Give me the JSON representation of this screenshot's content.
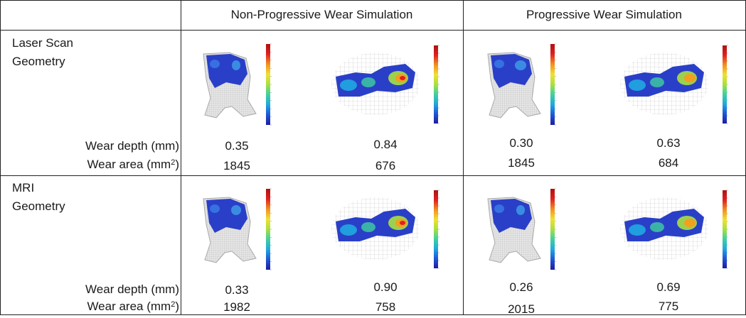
{
  "columns": {
    "non_progressive": "Non-Progressive Wear Simulation",
    "progressive": "Progressive Wear Simulation"
  },
  "labels": {
    "wear_depth": "Wear depth (mm)",
    "wear_area_prefix": "Wear area (mm",
    "wear_area_exp": "2",
    "wear_area_suffix": ")"
  },
  "rows": [
    {
      "title_line1": "Laser Scan",
      "title_line2": "Geometry",
      "depth": [
        "0.35",
        "0.84",
        "0.30",
        "0.63"
      ],
      "area": [
        "1845",
        "676",
        "1845",
        "684"
      ]
    },
    {
      "title_line1": "MRI",
      "title_line2": "Geometry",
      "depth": [
        "0.33",
        "0.90",
        "0.26",
        "0.69"
      ],
      "area": [
        "1982",
        "758",
        "2015",
        "775"
      ]
    }
  ],
  "colors": {
    "colormap": [
      "#1d1d9e",
      "#1f56d6",
      "#1fa8e0",
      "#3fd0a0",
      "#a8e040",
      "#f2e030",
      "#f29020",
      "#e02020",
      "#b01010"
    ],
    "mesh_grey": "#c8c8c8",
    "wear_blue": "#2a3fc8"
  }
}
